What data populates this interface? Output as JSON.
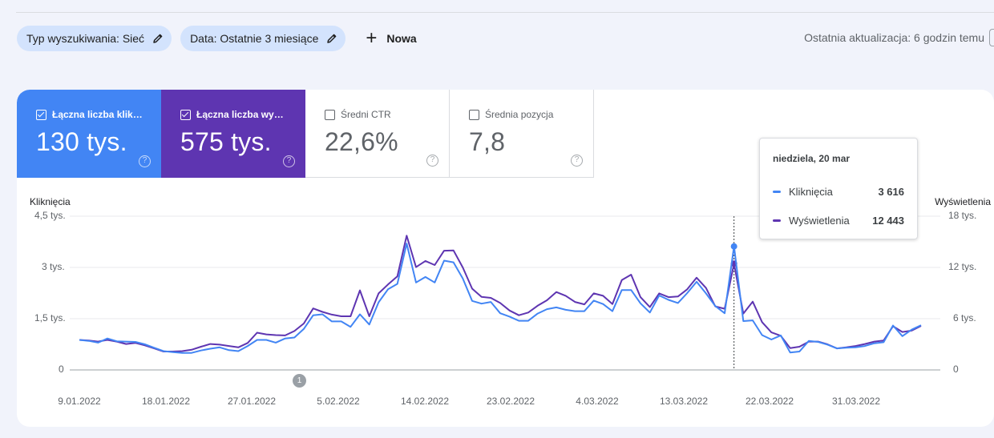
{
  "filters": {
    "search_type": "Typ wyszukiwania: Sieć",
    "date": "Data: Ostatnie 3 miesiące",
    "new_label": "Nowa"
  },
  "last_update": "Ostatnia aktualizacja: 6 godzin temu",
  "metrics": [
    {
      "label": "Łączna liczba klik…",
      "value": "130 tys.",
      "checked": true,
      "color": "#4285f4"
    },
    {
      "label": "Łączna liczba wy…",
      "value": "575 tys.",
      "checked": true,
      "color": "#5e35b1"
    },
    {
      "label": "Średni CTR",
      "value": "22,6%",
      "checked": false
    },
    {
      "label": "Średnia pozycja",
      "value": "7,8",
      "checked": false
    }
  ],
  "tooltip": {
    "date": "niedziela, 20 mar",
    "rows": [
      {
        "label": "Kliknięcia",
        "value": "3 616",
        "color": "#4285f4"
      },
      {
        "label": "Wyświetlenia",
        "value": "12 443",
        "color": "#5e35b1"
      }
    ]
  },
  "annotation_marker": "1",
  "help_glyph": "?",
  "chart_data": {
    "type": "line",
    "ylabel_left": "Kliknięcia",
    "ylabel_right": "Wyświetlenia",
    "yticks_left": [
      "4,5 tys.",
      "3 tys.",
      "1,5 tys.",
      "0"
    ],
    "yticks_right": [
      "18 tys.",
      "12 tys.",
      "6 tys.",
      "0"
    ],
    "ylim_left": [
      0,
      4500
    ],
    "ylim_right": [
      0,
      18000
    ],
    "xticks": [
      "9.01.2022",
      "18.01.2022",
      "27.01.2022",
      "5.02.2022",
      "14.02.2022",
      "23.02.2022",
      "4.03.2022",
      "13.03.2022",
      "22.03.2022",
      "31.03.2022"
    ],
    "x_start": "9.01.2022",
    "grid": true,
    "series": [
      {
        "name": "Kliknięcia",
        "axis": "left",
        "color": "#4285f4",
        "values": [
          880,
          850,
          800,
          920,
          840,
          830,
          820,
          750,
          650,
          550,
          520,
          500,
          500,
          570,
          620,
          660,
          580,
          550,
          700,
          880,
          880,
          800,
          920,
          950,
          1200,
          1600,
          1630,
          1420,
          1420,
          1260,
          1630,
          1330,
          1980,
          2360,
          2520,
          3700,
          2560,
          2720,
          2560,
          3200,
          3150,
          2680,
          2020,
          1940,
          1990,
          1660,
          1560,
          1440,
          1440,
          1650,
          1780,
          1830,
          1760,
          1720,
          1720,
          2030,
          1930,
          1720,
          2340,
          2340,
          1950,
          1680,
          2180,
          2050,
          1960,
          2250,
          2580,
          2240,
          1870,
          1660,
          3616,
          1430,
          1450,
          1020,
          890,
          1010,
          510,
          540,
          850,
          820,
          740,
          630,
          650,
          660,
          700,
          780,
          810,
          1300,
          990,
          1180,
          1310
        ]
      },
      {
        "name": "Wyświetlenia",
        "axis": "right",
        "color": "#5e35b1",
        "values": [
          3520,
          3440,
          3320,
          3520,
          3320,
          3040,
          3160,
          2880,
          2520,
          2160,
          2160,
          2200,
          2360,
          2720,
          3040,
          2960,
          2800,
          2640,
          3160,
          4360,
          4160,
          4080,
          4040,
          4560,
          5440,
          7200,
          6800,
          6480,
          6280,
          6280,
          9320,
          6280,
          8960,
          10000,
          10960,
          15720,
          12040,
          12760,
          12280,
          13960,
          14000,
          12000,
          9520,
          8560,
          8440,
          7840,
          6960,
          6400,
          6720,
          7520,
          8160,
          9120,
          8680,
          7960,
          7680,
          8960,
          8680,
          7720,
          10520,
          11160,
          8520,
          7360,
          8960,
          8520,
          8600,
          9440,
          10800,
          9600,
          7440,
          7160,
          12443,
          6600,
          8000,
          5600,
          4400,
          4000,
          2560,
          2720,
          3320,
          3320,
          3000,
          2520,
          2640,
          2800,
          3040,
          3320,
          3440,
          5120,
          4440,
          4600,
          5160
        ]
      }
    ]
  }
}
